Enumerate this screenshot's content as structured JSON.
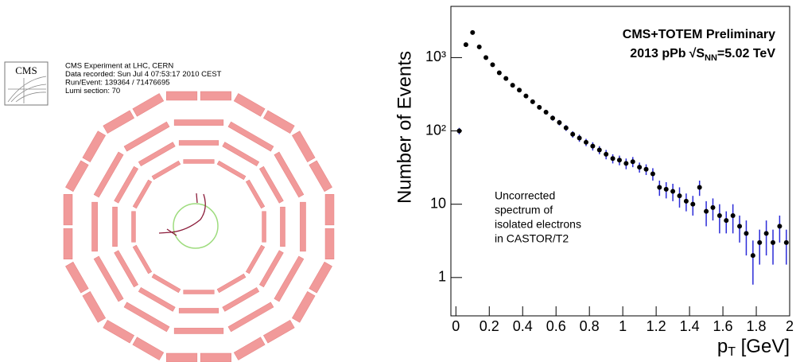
{
  "event_display": {
    "logo": "CMS",
    "info_lines": [
      "CMS Experiment at LHC, CERN",
      "Data recorded: Sun Jul  4 07:53:17 2010 CEST",
      "Run/Event: 139364 / 71476695",
      "Lumi section: 70"
    ]
  },
  "chart_data": {
    "type": "scatter",
    "log_y": true,
    "y_label": "Number of Events",
    "x_label": {
      "main": "p",
      "sub": "T",
      "unit": " [GeV]"
    },
    "annotation_title": "CMS+TOTEM Preliminary",
    "annotation_energy": {
      "pre": "2013 pPb",
      "root": "√",
      "s": "S",
      "sub": "NN",
      "post": "=5.02 TeV"
    },
    "note_lines": [
      "Uncorrected",
      "spectrum of",
      "isolated electrons",
      "in CASTOR/T2"
    ],
    "x": [
      0.02,
      0.06,
      0.1,
      0.14,
      0.18,
      0.22,
      0.26,
      0.3,
      0.34,
      0.38,
      0.42,
      0.46,
      0.5,
      0.54,
      0.58,
      0.62,
      0.66,
      0.7,
      0.74,
      0.78,
      0.82,
      0.86,
      0.9,
      0.94,
      0.98,
      1.02,
      1.06,
      1.1,
      1.14,
      1.18,
      1.22,
      1.26,
      1.3,
      1.34,
      1.38,
      1.42,
      1.46,
      1.5,
      1.54,
      1.58,
      1.62,
      1.66,
      1.7,
      1.74,
      1.78,
      1.82,
      1.86,
      1.9,
      1.94,
      1.98
    ],
    "values": [
      100,
      1500,
      2200,
      1400,
      1000,
      800,
      620,
      520,
      420,
      360,
      300,
      250,
      210,
      180,
      150,
      130,
      110,
      90,
      80,
      70,
      62,
      55,
      48,
      42,
      40,
      36,
      38,
      32,
      30,
      26,
      17,
      16,
      15,
      13,
      11,
      10,
      17,
      8,
      9,
      7,
      6,
      7,
      5,
      4,
      2,
      3,
      4,
      3,
      5,
      3
    ],
    "errors": [
      10,
      40,
      50,
      40,
      30,
      28,
      25,
      22,
      20,
      19,
      17,
      16,
      14,
      13,
      12,
      11,
      10,
      9,
      9,
      8,
      8,
      7,
      7,
      6,
      6,
      6,
      6,
      5,
      5,
      5,
      4,
      4,
      4,
      4,
      3,
      3,
      4,
      3,
      3,
      3,
      2,
      3,
      2,
      2,
      1.2,
      1.5,
      2,
      1.5,
      2,
      1.5
    ],
    "color": "#000000",
    "error_color": "#2b2bd8",
    "xlim": [
      -0.03,
      2.0
    ],
    "ylim": [
      0.3,
      5000
    ],
    "xticks": [
      0,
      0.2,
      0.4,
      0.6,
      0.8,
      1,
      1.2,
      1.4,
      1.6,
      1.8,
      2
    ],
    "yticks": [
      1,
      10,
      {
        "value": 100,
        "label": "10²"
      },
      {
        "value": 1000,
        "label": "10³"
      }
    ]
  }
}
